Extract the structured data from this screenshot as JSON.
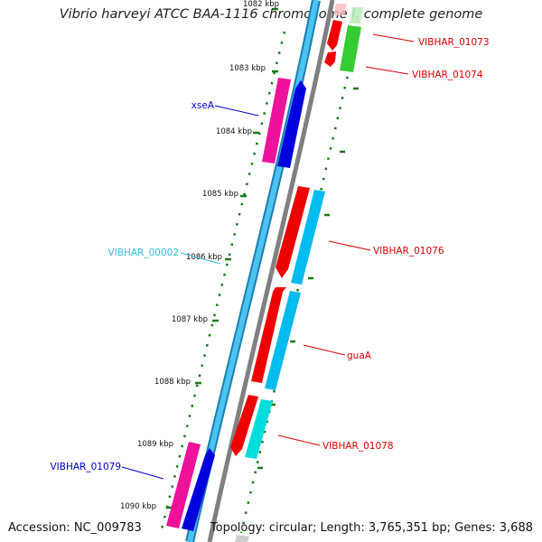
{
  "title": "Vibrio harveyi ATCC BAA-1116 chromosome I, complete genome",
  "accession": "Accession: NC_009783",
  "topology": "Topology: circular; Length: 3,765,351 bp; Genes: 3,688",
  "colors": {
    "backbone": "#808080",
    "blue_track_dark": "#1b7fb3",
    "blue_track_light": "#4dc3f0",
    "tick": "#1a7a1a",
    "label_red": "#dd0000",
    "label_blue": "#0000cc",
    "label_cyan": "#33bbdd"
  },
  "ticks": [
    {
      "id": "t1082",
      "label": "1082 kbp"
    },
    {
      "id": "t1083",
      "label": "1083 kbp"
    },
    {
      "id": "t1084",
      "label": "1084 kbp"
    },
    {
      "id": "t1085",
      "label": "1085 kbp"
    },
    {
      "id": "t1086",
      "label": "1086 kbp"
    },
    {
      "id": "t1087",
      "label": "1087 kbp"
    },
    {
      "id": "t1088",
      "label": "1088 kbp"
    },
    {
      "id": "t1089",
      "label": "1089 kbp"
    },
    {
      "id": "t1090",
      "label": "1090 kbp"
    }
  ],
  "genes": [
    {
      "id": "vibhar-01073",
      "label": "VIBHAR_01073",
      "color": "#dd0000"
    },
    {
      "id": "vibhar-01074",
      "label": "VIBHAR_01074",
      "color": "#dd0000"
    },
    {
      "id": "xsea",
      "label": "xseA",
      "color": "#0000cc"
    },
    {
      "id": "vibhar-01076",
      "label": "VIBHAR_01076",
      "color": "#dd0000"
    },
    {
      "id": "vibhar-00002",
      "label": "VIBHAR_00002",
      "color": "#33bbdd"
    },
    {
      "id": "guaa",
      "label": "guaA",
      "color": "#dd0000"
    },
    {
      "id": "vibhar-01078",
      "label": "VIBHAR_01078",
      "color": "#dd0000"
    },
    {
      "id": "vibhar-01079",
      "label": "VIBHAR_01079",
      "color": "#0000cc"
    }
  ]
}
